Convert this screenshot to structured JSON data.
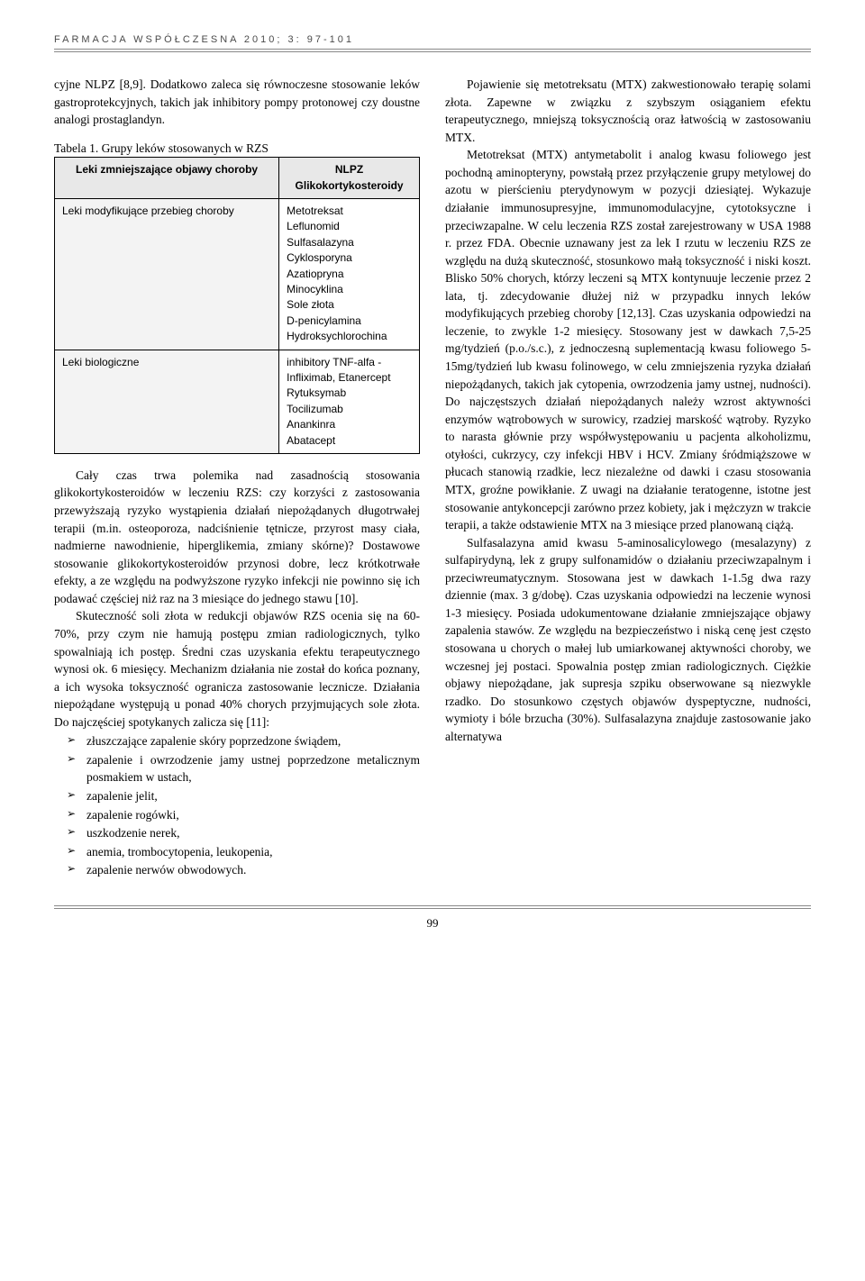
{
  "journal_header": "FARMACJA WSPÓŁCZESNA 2010; 3: 97-101",
  "left": {
    "p1": "cyjne NLPZ [8,9]. Dodatkowo zaleca się równoczesne stosowanie leków gastroprotekcyjnych, takich jak inhibitory pompy protonowej czy doustne analogi prostaglandyn.",
    "table_caption": "Tabela 1.   Grupy leków stosowanych w RZS",
    "table": {
      "header_left": "Leki zmniejszające objawy choroby",
      "header_right": "NLPZ\nGlikokortykosteroidy",
      "row1_left": "Leki modyfikujące przebieg choroby",
      "row1_right": "Metotreksat\nLeflunomid\nSulfasalazyna\nCyklosporyna\nAzatiopryna\nMinocyklina\nSole złota\nD-penicylamina\nHydroksychlorochina",
      "row2_left": "Leki biologiczne",
      "row2_right": "inhibitory TNF-alfa -\n    Infliximab, Etanercept\nRytuksymab\nTocilizumab\nAnankinra\nAbatacept"
    },
    "p2": "Cały czas trwa polemika nad zasadnością stosowania glikokortykosteroidów w leczeniu RZS: czy korzyści z zastosowania przewyższają ryzyko wystąpienia działań niepożądanych długotrwałej terapii (m.in. osteoporoza, nadciśnienie tętnicze, przyrost masy ciała, nadmierne nawodnienie, hiperglikemia, zmiany skórne)? Dostawowe stosowanie glikokortykosteroidów przynosi dobre, lecz krótkotrwałe efekty, a ze względu na podwyższone ryzyko infekcji nie powinno się ich podawać częściej niż raz na 3 miesiące do jednego stawu [10].",
    "p3": "Skuteczność soli złota w redukcji objawów RZS ocenia się na 60-70%, przy czym nie hamują postępu zmian radiologicznych, tylko spowalniają ich postęp. Średni czas uzyskania efektu terapeutycznego wynosi ok. 6 miesięcy. Mechanizm działania nie został do końca poznany, a ich wysoka toksyczność ogranicza zastosowanie lecznicze. Działania niepożądane występują u ponad 40% chorych przyjmujących sole złota. Do najczęściej spotykanych zalicza się [11]:",
    "bullets": [
      "złuszczające zapalenie skóry poprzedzone świądem,",
      "zapalenie i owrzodzenie jamy ustnej poprzedzone metalicznym posmakiem w ustach,",
      "zapalenie jelit,",
      "zapalenie rogówki,",
      "uszkodzenie nerek,",
      "anemia, trombocytopenia, leukopenia,",
      "zapalenie nerwów obwodowych."
    ]
  },
  "right": {
    "p1": "Pojawienie się metotreksatu (MTX) zakwestionowało terapię solami złota. Zapewne w związku z szybszym osiąganiem efektu terapeutycznego, mniejszą toksycznością oraz łatwością w zastosowaniu MTX.",
    "p2": "Metotreksat (MTX) antymetabolit i analog kwasu foliowego jest pochodną aminopteryny, powstałą przez przyłączenie grupy metylowej do azotu w pierścieniu pterydynowym w pozycji dziesiątej. Wykazuje działanie immunosupresyjne, immunomodulacyjne, cytotoksyczne i przeciwzapalne. W celu leczenia RZS został zarejestrowany w USA 1988 r. przez FDA. Obecnie uznawany jest za lek I rzutu w leczeniu RZS ze względu na dużą skuteczność, stosunkowo małą toksyczność i niski koszt. Blisko 50% chorych, którzy leczeni są MTX kontynuuje leczenie przez 2 lata, tj. zdecydowanie dłużej niż w przypadku innych leków modyfikujących przebieg choroby [12,13]. Czas uzyskania odpowiedzi na leczenie, to zwykle 1-2 miesięcy. Stosowany jest w dawkach 7,5-25 mg/tydzień (p.o./s.c.), z jednoczesną suplementacją kwasu foliowego 5-15mg/tydzień lub kwasu folinowego, w celu zmniejszenia ryzyka działań niepożądanych, takich jak cytopenia, owrzodzenia jamy ustnej, nudności). Do najczęstszych działań niepożądanych należy wzrost aktywności enzymów wątrobowych w surowicy, rzadziej marskość wątroby. Ryzyko to narasta głównie przy współwystępowaniu u pacjenta alkoholizmu, otyłości, cukrzycy, czy infekcji HBV i HCV. Zmiany śródmiąższowe w płucach stanowią rzadkie, lecz niezależne od dawki i czasu stosowania MTX, groźne powikłanie. Z uwagi na działanie teratogenne, istotne jest stosowanie antykoncepcji zarówno przez kobiety, jak i mężczyzn w trakcie terapii, a także odstawienie MTX na 3 miesiące przed planowaną ciążą.",
    "p3": "Sulfasalazyna amid kwasu 5-aminosalicylowego (mesalazyny) z sulfapirydyną, lek z grupy sulfonamidów o działaniu przeciwzapalnym i przeciwreumatycznym. Stosowana jest w dawkach 1-1.5g dwa razy dziennie (max. 3 g/dobę). Czas uzyskania odpowiedzi na leczenie wynosi 1-3 miesięcy. Posiada udokumentowane działanie zmniejszające objawy zapalenia stawów. Ze względu na bezpieczeństwo i niską cenę jest często stosowana u chorych o małej lub umiarkowanej aktywności choroby, we wczesnej jej postaci. Spowalnia postęp zmian radiologicznych. Ciężkie objawy niepożądane, jak supresja szpiku obserwowane są niezwykle rzadko. Do stosunkowo częstych objawów dyspeptyczne, nudności, wymioty i bóle brzucha (30%). Sulfasalazyna znajduje zastosowanie jako alternatywa"
  },
  "page_number": "99"
}
